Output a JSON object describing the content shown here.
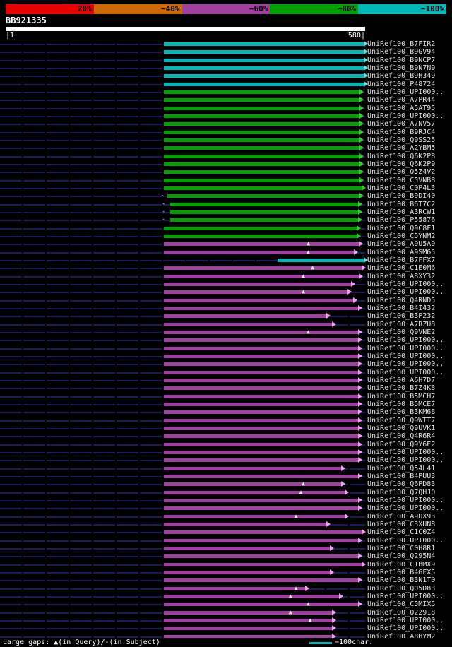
{
  "identity_scale": {
    "segments": [
      {
        "label": "20%",
        "color": "#e80000"
      },
      {
        "label": "~40%",
        "color": "#d06800"
      },
      {
        "label": "~60%",
        "color": "#a040a0"
      },
      {
        "label": "~80%",
        "color": "#00a000"
      },
      {
        "label": "~100%",
        "color": "#00b8b8"
      }
    ]
  },
  "query": {
    "name": "BB921335",
    "ruler_left": "|1",
    "ruler_right": "580|",
    "length": 580
  },
  "colors": {
    "cyan": "#00b8b8",
    "cyan_arrow": "#66e0e0",
    "green": "#00a000",
    "green_arrow": "#33cc33",
    "purple": "#a040a0",
    "purple_arrow": "#f2a0f2"
  },
  "footer": {
    "gaps_label": "Large gaps: ▲(in Query)/-(in Subject)",
    "scalebar_label": "=100char."
  },
  "chart_data": {
    "type": "bar",
    "orientation": "horizontal",
    "x_range": [
      1,
      580
    ],
    "legend": {
      "cyan": "~100%",
      "green": "~80%",
      "purple": "~60%"
    },
    "hits": [
      {
        "name": "UniRef100_B7FIR2",
        "start": 256,
        "end": 579,
        "color": "cyan",
        "identity": "~100%"
      },
      {
        "name": "UniRef100_B9GV94",
        "start": 256,
        "end": 579,
        "color": "cyan",
        "identity": "~100%"
      },
      {
        "name": "UniRef100_B9NCP7",
        "start": 256,
        "end": 579,
        "color": "cyan",
        "identity": "~100%"
      },
      {
        "name": "UniRef100_B9N7N9",
        "start": 256,
        "end": 579,
        "color": "cyan",
        "identity": "~100%"
      },
      {
        "name": "UniRef100_B9H349",
        "start": 256,
        "end": 579,
        "color": "cyan",
        "identity": "~100%"
      },
      {
        "name": "UniRef100_P48724",
        "start": 256,
        "end": 579,
        "color": "cyan",
        "identity": "~100%"
      },
      {
        "name": "UniRef100_UPI000..",
        "start": 256,
        "end": 572,
        "color": "green",
        "identity": "~80%"
      },
      {
        "name": "UniRef100_A7PR44",
        "start": 256,
        "end": 572,
        "color": "green",
        "identity": "~80%"
      },
      {
        "name": "UniRef100_A5AT95",
        "start": 256,
        "end": 572,
        "color": "green",
        "identity": "~80%"
      },
      {
        "name": "UniRef100_UPI000..",
        "start": 256,
        "end": 572,
        "color": "green",
        "identity": "~80%"
      },
      {
        "name": "UniRef100_A7NV57",
        "start": 256,
        "end": 572,
        "color": "green",
        "identity": "~80%"
      },
      {
        "name": "UniRef100_B9RJC4",
        "start": 256,
        "end": 572,
        "color": "green",
        "identity": "~80%"
      },
      {
        "name": "UniRef100_Q9SS25",
        "start": 256,
        "end": 572,
        "color": "green",
        "identity": "~80%"
      },
      {
        "name": "UniRef100_A2YBM5",
        "start": 256,
        "end": 572,
        "color": "green",
        "identity": "~80%"
      },
      {
        "name": "UniRef100_Q6K2P8",
        "start": 256,
        "end": 572,
        "color": "green",
        "identity": "~80%"
      },
      {
        "name": "UniRef100_Q6K2P9",
        "start": 256,
        "end": 572,
        "color": "green",
        "identity": "~80%"
      },
      {
        "name": "UniRef100_Q5Z4V2",
        "start": 256,
        "end": 572,
        "color": "green",
        "identity": "~80%"
      },
      {
        "name": "UniRef100_C5VNB8",
        "start": 256,
        "end": 572,
        "color": "green",
        "identity": "~80%"
      },
      {
        "name": "UniRef100_C0P4L3",
        "start": 256,
        "end": 575,
        "color": "green",
        "identity": "~80%"
      },
      {
        "name": "UniRef100_B9DI40",
        "start": 262,
        "end": 572,
        "color": "green",
        "identity": "~80%",
        "markers": [
          {
            "pos": 254,
            "glyph": "-"
          }
        ]
      },
      {
        "name": "UniRef100_B6T7C2",
        "start": 266,
        "end": 570,
        "color": "green",
        "identity": "~80%",
        "markers": [
          {
            "pos": 256,
            "glyph": "-"
          }
        ]
      },
      {
        "name": "UniRef100_A3RCW1",
        "start": 266,
        "end": 570,
        "color": "green",
        "identity": "~80%",
        "markers": [
          {
            "pos": 256,
            "glyph": "-"
          }
        ]
      },
      {
        "name": "UniRef100_P55876",
        "start": 266,
        "end": 570,
        "color": "green",
        "identity": "~80%",
        "markers": [
          {
            "pos": 256,
            "glyph": "-"
          }
        ]
      },
      {
        "name": "UniRef100_Q9C8F1",
        "start": 256,
        "end": 567,
        "color": "green",
        "identity": "~80%"
      },
      {
        "name": "UniRef100_C5YNM2",
        "start": 256,
        "end": 567,
        "color": "green",
        "identity": "~80%"
      },
      {
        "name": "UniRef100_A9U5A9",
        "start": 256,
        "end": 571,
        "color": "purple",
        "identity": "~60%",
        "markers": [
          {
            "pos": 490,
            "glyph": "▲"
          }
        ]
      },
      {
        "name": "UniRef100_A9SM65",
        "start": 256,
        "end": 563,
        "color": "purple",
        "identity": "~60%",
        "markers": [
          {
            "pos": 490,
            "glyph": "▲"
          }
        ]
      },
      {
        "name": "UniRef100_B7FFX7",
        "start": 440,
        "end": 579,
        "color": "cyan",
        "identity": "~100%"
      },
      {
        "name": "UniRef100_C1E0M6",
        "start": 256,
        "end": 575,
        "color": "purple",
        "identity": "~60%",
        "markers": [
          {
            "pos": 497,
            "glyph": "▲"
          }
        ]
      },
      {
        "name": "UniRef100_A8XY32",
        "start": 256,
        "end": 571,
        "color": "purple",
        "identity": "~60%",
        "markers": [
          {
            "pos": 482,
            "glyph": "▲"
          }
        ]
      },
      {
        "name": "UniRef100_UPI000..",
        "start": 256,
        "end": 558,
        "color": "purple",
        "identity": "~60%"
      },
      {
        "name": "UniRef100_UPI000..",
        "start": 256,
        "end": 553,
        "color": "purple",
        "identity": "~60%",
        "markers": [
          {
            "pos": 482,
            "glyph": "▲"
          }
        ]
      },
      {
        "name": "UniRef100_Q4RND5",
        "start": 256,
        "end": 562,
        "color": "purple",
        "identity": "~60%"
      },
      {
        "name": "UniRef100_B4I432",
        "start": 256,
        "end": 570,
        "color": "purple",
        "identity": "~60%"
      },
      {
        "name": "UniRef100_B3P232",
        "start": 256,
        "end": 518,
        "color": "purple",
        "identity": "~60%"
      },
      {
        "name": "UniRef100_A7RZU8",
        "start": 256,
        "end": 527,
        "color": "purple",
        "identity": "~60%"
      },
      {
        "name": "UniRef100_Q9VNE2",
        "start": 256,
        "end": 570,
        "color": "purple",
        "identity": "~60%",
        "markers": [
          {
            "pos": 490,
            "glyph": "▲"
          }
        ]
      },
      {
        "name": "UniRef100_UPI000..",
        "start": 256,
        "end": 570,
        "color": "purple",
        "identity": "~60%"
      },
      {
        "name": "UniRef100_UPI000..",
        "start": 256,
        "end": 570,
        "color": "purple",
        "identity": "~60%"
      },
      {
        "name": "UniRef100_UPI000..",
        "start": 256,
        "end": 570,
        "color": "purple",
        "identity": "~60%"
      },
      {
        "name": "UniRef100_UPI000..",
        "start": 256,
        "end": 570,
        "color": "purple",
        "identity": "~60%"
      },
      {
        "name": "UniRef100_UPI000..",
        "start": 256,
        "end": 570,
        "color": "purple",
        "identity": "~60%"
      },
      {
        "name": "UniRef100_A6H7D7",
        "start": 256,
        "end": 570,
        "color": "purple",
        "identity": "~60%"
      },
      {
        "name": "UniRef100_B7Z4K8",
        "start": 256,
        "end": 570,
        "color": "purple",
        "identity": "~60%"
      },
      {
        "name": "UniRef100_B5MCH7",
        "start": 256,
        "end": 570,
        "color": "purple",
        "identity": "~60%"
      },
      {
        "name": "UniRef100_B5MCE7",
        "start": 256,
        "end": 570,
        "color": "purple",
        "identity": "~60%"
      },
      {
        "name": "UniRef100_B3KM68",
        "start": 256,
        "end": 570,
        "color": "purple",
        "identity": "~60%"
      },
      {
        "name": "UniRef100_Q9WTT7",
        "start": 256,
        "end": 570,
        "color": "purple",
        "identity": "~60%"
      },
      {
        "name": "UniRef100_Q9UVK1",
        "start": 256,
        "end": 570,
        "color": "purple",
        "identity": "~60%"
      },
      {
        "name": "UniRef100_Q4R6R4",
        "start": 256,
        "end": 570,
        "color": "purple",
        "identity": "~60%"
      },
      {
        "name": "UniRef100_Q9Y6E2",
        "start": 256,
        "end": 570,
        "color": "purple",
        "identity": "~60%"
      },
      {
        "name": "UniRef100_UPI000..",
        "start": 256,
        "end": 570,
        "color": "purple",
        "identity": "~60%"
      },
      {
        "name": "UniRef100_UPI000..",
        "start": 256,
        "end": 570,
        "color": "purple",
        "identity": "~60%"
      },
      {
        "name": "UniRef100_Q54L41",
        "start": 256,
        "end": 542,
        "color": "purple",
        "identity": "~60%"
      },
      {
        "name": "UniRef100_B4PUU3",
        "start": 256,
        "end": 570,
        "color": "purple",
        "identity": "~60%"
      },
      {
        "name": "UniRef100_Q6PD83",
        "start": 256,
        "end": 542,
        "color": "purple",
        "identity": "~60%",
        "markers": [
          {
            "pos": 482,
            "glyph": "▲"
          }
        ]
      },
      {
        "name": "UniRef100_Q7QHJ0",
        "start": 256,
        "end": 548,
        "color": "purple",
        "identity": "~60%",
        "markers": [
          {
            "pos": 478,
            "glyph": "▲"
          }
        ]
      },
      {
        "name": "UniRef100_UPI000..",
        "start": 256,
        "end": 570,
        "color": "purple",
        "identity": "~60%"
      },
      {
        "name": "UniRef100_UPI000..",
        "start": 256,
        "end": 570,
        "color": "purple",
        "identity": "~60%"
      },
      {
        "name": "UniRef100_A9UX93",
        "start": 256,
        "end": 548,
        "color": "purple",
        "identity": "~60%",
        "markers": [
          {
            "pos": 470,
            "glyph": "▲"
          }
        ]
      },
      {
        "name": "UniRef100_C3XUN8",
        "start": 256,
        "end": 518,
        "color": "purple",
        "identity": "~60%"
      },
      {
        "name": "UniRef100_C1C0Z4",
        "start": 256,
        "end": 575,
        "color": "purple",
        "identity": "~60%"
      },
      {
        "name": "UniRef100_UPI000..",
        "start": 256,
        "end": 570,
        "color": "purple",
        "identity": "~60%"
      },
      {
        "name": "UniRef100_C0H8R1",
        "start": 256,
        "end": 524,
        "color": "purple",
        "identity": "~60%"
      },
      {
        "name": "UniRef100_Q295N4",
        "start": 256,
        "end": 570,
        "color": "purple",
        "identity": "~60%"
      },
      {
        "name": "UniRef100_C1BMX9",
        "start": 256,
        "end": 575,
        "color": "purple",
        "identity": "~60%"
      },
      {
        "name": "UniRef100_B4GFX5",
        "start": 256,
        "end": 524,
        "color": "purple",
        "identity": "~60%"
      },
      {
        "name": "UniRef100_B3N1T0",
        "start": 256,
        "end": 570,
        "color": "purple",
        "identity": "~60%"
      },
      {
        "name": "UniRef100_Q05D83",
        "start": 256,
        "end": 484,
        "color": "purple",
        "identity": "~60%",
        "markers": [
          {
            "pos": 470,
            "glyph": "▲"
          }
        ]
      },
      {
        "name": "UniRef100_UPI000..",
        "start": 256,
        "end": 539,
        "color": "purple",
        "identity": "~60%",
        "markers": [
          {
            "pos": 461,
            "glyph": "▲"
          }
        ]
      },
      {
        "name": "UniRef100_C5MIX5",
        "start": 256,
        "end": 570,
        "color": "purple",
        "identity": "~60%",
        "markers": [
          {
            "pos": 490,
            "glyph": "▲"
          }
        ]
      },
      {
        "name": "UniRef100_Q22918",
        "start": 256,
        "end": 527,
        "color": "purple",
        "identity": "~60%",
        "markers": [
          {
            "pos": 461,
            "glyph": "▲"
          }
        ]
      },
      {
        "name": "UniRef100_UPI000..",
        "start": 256,
        "end": 527,
        "color": "purple",
        "identity": "~60%",
        "markers": [
          {
            "pos": 493,
            "glyph": "▲"
          }
        ]
      },
      {
        "name": "UniRef100_UPI000..",
        "start": 256,
        "end": 527,
        "color": "purple",
        "identity": "~60%"
      },
      {
        "name": "UniRef100_A8HYM2",
        "start": 256,
        "end": 527,
        "color": "purple",
        "identity": "~60%"
      }
    ]
  }
}
